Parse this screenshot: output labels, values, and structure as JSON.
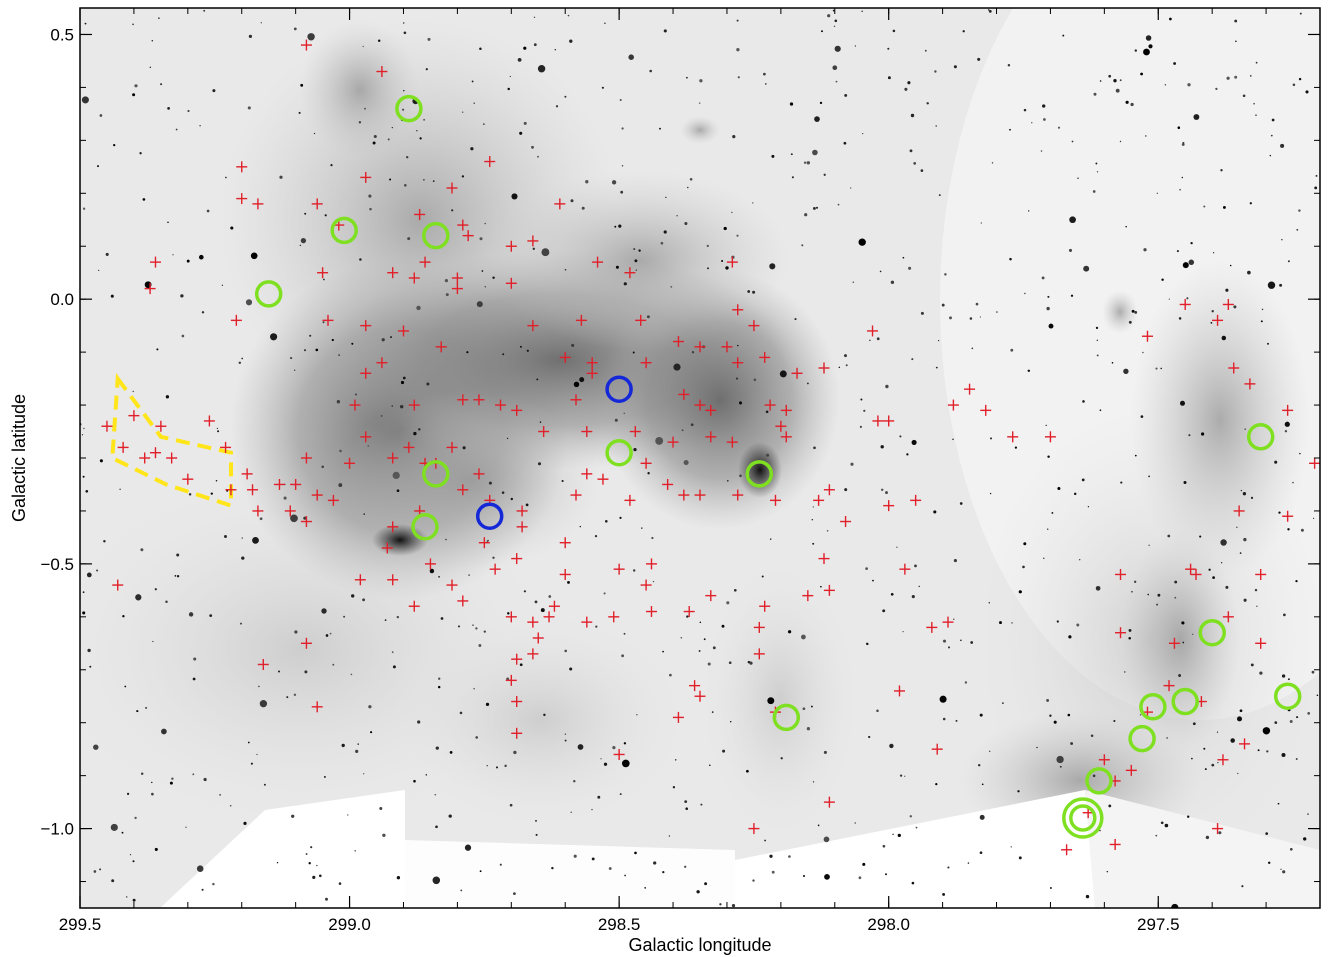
{
  "chart_data": {
    "type": "scatter",
    "xlabel": "Galactic longitude",
    "ylabel": "Galactic latitude",
    "xlim": [
      299.5,
      297.2
    ],
    "ylim": [
      -1.15,
      0.55
    ],
    "x_ticks": [
      {
        "value": 299.5,
        "label": "299.5"
      },
      {
        "value": 299.0,
        "label": "299.0"
      },
      {
        "value": 298.5,
        "label": "298.5"
      },
      {
        "value": 298.0,
        "label": "298.0"
      },
      {
        "value": 297.5,
        "label": "297.5"
      }
    ],
    "y_ticks": [
      {
        "value": 0.5,
        "label": "0.5"
      },
      {
        "value": 0.0,
        "label": "0.0"
      },
      {
        "value": -0.5,
        "label": "−0.5"
      },
      {
        "value": -1.0,
        "label": "−1.0"
      }
    ],
    "grid": false,
    "background": "grayscale infrared mosaic",
    "series": [
      {
        "marker": "plus",
        "color": "#e0202a",
        "points": [
          [
            299.08,
            0.48
          ],
          [
            298.94,
            0.43
          ],
          [
            299.2,
            0.25
          ],
          [
            299.2,
            0.19
          ],
          [
            298.97,
            0.23
          ],
          [
            298.81,
            0.21
          ],
          [
            298.74,
            0.26
          ],
          [
            299.17,
            0.18
          ],
          [
            299.06,
            0.18
          ],
          [
            299.02,
            0.14
          ],
          [
            298.87,
            0.16
          ],
          [
            298.79,
            0.14
          ],
          [
            298.78,
            0.12
          ],
          [
            298.88,
            0.04
          ],
          [
            298.8,
            0.04
          ],
          [
            298.86,
            0.07
          ],
          [
            298.7,
            0.1
          ],
          [
            298.61,
            0.18
          ],
          [
            298.66,
            0.11
          ],
          [
            298.54,
            0.07
          ],
          [
            298.48,
            0.05
          ],
          [
            298.29,
            0.07
          ],
          [
            299.36,
            0.07
          ],
          [
            299.37,
            0.02
          ],
          [
            299.05,
            0.05
          ],
          [
            298.92,
            0.05
          ],
          [
            298.8,
            0.02
          ],
          [
            298.7,
            0.03
          ],
          [
            298.66,
            -0.05
          ],
          [
            298.57,
            -0.04
          ],
          [
            298.46,
            -0.04
          ],
          [
            298.28,
            -0.02
          ],
          [
            298.25,
            -0.05
          ],
          [
            298.97,
            -0.05
          ],
          [
            299.04,
            -0.04
          ],
          [
            298.9,
            -0.06
          ],
          [
            299.21,
            -0.04
          ],
          [
            298.83,
            -0.09
          ],
          [
            298.6,
            -0.11
          ],
          [
            298.55,
            -0.12
          ],
          [
            298.55,
            -0.14
          ],
          [
            298.45,
            -0.12
          ],
          [
            298.39,
            -0.08
          ],
          [
            298.35,
            -0.09
          ],
          [
            298.3,
            -0.09
          ],
          [
            298.28,
            -0.12
          ],
          [
            298.23,
            -0.11
          ],
          [
            298.17,
            -0.14
          ],
          [
            298.12,
            -0.13
          ],
          [
            298.03,
            -0.06
          ],
          [
            298.94,
            -0.12
          ],
          [
            298.97,
            -0.14
          ],
          [
            298.79,
            -0.19
          ],
          [
            298.76,
            -0.19
          ],
          [
            298.72,
            -0.2
          ],
          [
            298.69,
            -0.21
          ],
          [
            298.58,
            -0.19
          ],
          [
            298.38,
            -0.18
          ],
          [
            298.35,
            -0.2
          ],
          [
            298.33,
            -0.21
          ],
          [
            298.22,
            -0.2
          ],
          [
            298.19,
            -0.21
          ],
          [
            298.02,
            -0.23
          ],
          [
            298.0,
            -0.23
          ],
          [
            297.85,
            -0.17
          ],
          [
            297.82,
            -0.21
          ],
          [
            297.7,
            -0.26
          ],
          [
            298.88,
            -0.2
          ],
          [
            298.99,
            -0.2
          ],
          [
            298.97,
            -0.26
          ],
          [
            298.89,
            -0.28
          ],
          [
            298.86,
            -0.31
          ],
          [
            298.81,
            -0.28
          ],
          [
            298.64,
            -0.25
          ],
          [
            298.56,
            -0.25
          ],
          [
            298.47,
            -0.25
          ],
          [
            298.4,
            -0.27
          ],
          [
            298.33,
            -0.26
          ],
          [
            298.29,
            -0.27
          ],
          [
            298.2,
            -0.24
          ],
          [
            298.19,
            -0.26
          ],
          [
            299.08,
            -0.3
          ],
          [
            299.1,
            -0.35
          ],
          [
            299.06,
            -0.37
          ],
          [
            299.0,
            -0.31
          ],
          [
            298.92,
            -0.3
          ],
          [
            298.84,
            -0.31
          ],
          [
            298.76,
            -0.33
          ],
          [
            298.79,
            -0.36
          ],
          [
            298.87,
            -0.4
          ],
          [
            298.74,
            -0.38
          ],
          [
            298.68,
            -0.4
          ],
          [
            298.58,
            -0.37
          ],
          [
            298.53,
            -0.34
          ],
          [
            298.45,
            -0.31
          ],
          [
            298.48,
            -0.38
          ],
          [
            298.41,
            -0.35
          ],
          [
            298.35,
            -0.37
          ],
          [
            298.28,
            -0.37
          ],
          [
            298.21,
            -0.38
          ],
          [
            298.13,
            -0.38
          ],
          [
            298.11,
            -0.36
          ],
          [
            298.08,
            -0.42
          ],
          [
            298.0,
            -0.39
          ],
          [
            297.95,
            -0.38
          ],
          [
            299.19,
            -0.33
          ],
          [
            299.18,
            -0.36
          ],
          [
            299.11,
            -0.4
          ],
          [
            299.08,
            -0.42
          ],
          [
            299.03,
            -0.38
          ],
          [
            298.92,
            -0.43
          ],
          [
            298.75,
            -0.46
          ],
          [
            298.68,
            -0.43
          ],
          [
            298.69,
            -0.49
          ],
          [
            298.6,
            -0.46
          ],
          [
            298.6,
            -0.52
          ],
          [
            298.62,
            -0.58
          ],
          [
            298.63,
            -0.6
          ],
          [
            298.56,
            -0.61
          ],
          [
            298.51,
            -0.6
          ],
          [
            298.5,
            -0.51
          ],
          [
            298.44,
            -0.5
          ],
          [
            298.45,
            -0.54
          ],
          [
            298.44,
            -0.59
          ],
          [
            298.37,
            -0.59
          ],
          [
            298.33,
            -0.56
          ],
          [
            298.23,
            -0.58
          ],
          [
            298.24,
            -0.62
          ],
          [
            298.24,
            -0.67
          ],
          [
            298.15,
            -0.56
          ],
          [
            298.11,
            -0.55
          ],
          [
            298.12,
            -0.49
          ],
          [
            297.97,
            -0.51
          ],
          [
            297.89,
            -0.61
          ],
          [
            297.92,
            -0.62
          ],
          [
            297.98,
            -0.74
          ],
          [
            298.85,
            -0.5
          ],
          [
            298.92,
            -0.53
          ],
          [
            298.98,
            -0.53
          ],
          [
            298.88,
            -0.58
          ],
          [
            298.79,
            -0.57
          ],
          [
            298.7,
            -0.6
          ],
          [
            298.65,
            -0.64
          ],
          [
            298.66,
            -0.67
          ],
          [
            298.69,
            -0.68
          ],
          [
            298.7,
            -0.72
          ],
          [
            298.69,
            -0.76
          ],
          [
            298.69,
            -0.82
          ],
          [
            298.36,
            -0.73
          ],
          [
            298.39,
            -0.79
          ],
          [
            298.5,
            -0.86
          ],
          [
            298.21,
            -0.78
          ],
          [
            297.91,
            -0.85
          ],
          [
            298.11,
            -0.95
          ],
          [
            298.25,
            -1.0
          ],
          [
            297.88,
            -0.2
          ],
          [
            297.77,
            -0.26
          ],
          [
            297.57,
            -0.52
          ],
          [
            297.57,
            -0.63
          ],
          [
            297.52,
            -0.07
          ],
          [
            297.45,
            -0.01
          ],
          [
            297.37,
            -0.01
          ],
          [
            297.39,
            -0.04
          ],
          [
            297.36,
            -0.13
          ],
          [
            297.33,
            -0.16
          ],
          [
            297.26,
            -0.21
          ],
          [
            297.21,
            -0.31
          ],
          [
            297.26,
            -0.41
          ],
          [
            297.35,
            -0.4
          ],
          [
            297.44,
            -0.51
          ],
          [
            297.43,
            -0.52
          ],
          [
            297.31,
            -0.52
          ],
          [
            297.37,
            -0.6
          ],
          [
            297.31,
            -0.65
          ],
          [
            297.47,
            -0.65
          ],
          [
            297.48,
            -0.73
          ],
          [
            297.42,
            -0.76
          ],
          [
            297.52,
            -0.78
          ],
          [
            297.34,
            -0.84
          ],
          [
            297.38,
            -0.87
          ],
          [
            297.55,
            -0.89
          ],
          [
            297.58,
            -0.91
          ],
          [
            297.6,
            -0.87
          ],
          [
            297.63,
            -0.97
          ],
          [
            297.58,
            -1.03
          ],
          [
            297.67,
            -1.04
          ],
          [
            297.39,
            -1.0
          ],
          [
            299.08,
            -0.65
          ],
          [
            299.16,
            -0.69
          ],
          [
            299.06,
            -0.77
          ],
          [
            299.43,
            -0.54
          ],
          [
            299.26,
            -0.23
          ],
          [
            299.3,
            -0.34
          ],
          [
            299.4,
            -0.22
          ],
          [
            299.35,
            -0.24
          ],
          [
            299.45,
            -0.24
          ],
          [
            299.42,
            -0.28
          ],
          [
            299.38,
            -0.3
          ],
          [
            299.36,
            -0.29
          ],
          [
            299.33,
            -0.3
          ],
          [
            299.23,
            -0.28
          ],
          [
            299.22,
            -0.36
          ],
          [
            299.17,
            -0.4
          ],
          [
            299.13,
            -0.35
          ],
          [
            298.93,
            -0.47
          ],
          [
            298.81,
            -0.54
          ],
          [
            298.73,
            -0.51
          ],
          [
            298.66,
            -0.61
          ],
          [
            298.35,
            -0.75
          ],
          [
            298.38,
            -0.37
          ],
          [
            298.56,
            -0.33
          ]
        ]
      },
      {
        "marker": "circle",
        "color": "#7ee020",
        "points": [
          [
            298.89,
            0.36
          ],
          [
            299.01,
            0.13
          ],
          [
            298.84,
            0.12
          ],
          [
            299.15,
            0.01
          ],
          [
            298.84,
            -0.33
          ],
          [
            298.86,
            -0.43
          ],
          [
            298.5,
            -0.29
          ],
          [
            298.24,
            -0.33
          ],
          [
            298.19,
            -0.79
          ],
          [
            297.31,
            -0.26
          ],
          [
            297.4,
            -0.63
          ],
          [
            297.51,
            -0.77
          ],
          [
            297.45,
            -0.76
          ],
          [
            297.53,
            -0.83
          ],
          [
            297.26,
            -0.75
          ],
          [
            297.61,
            -0.91
          ],
          [
            297.64,
            -0.98
          ]
        ]
      },
      {
        "marker": "circle",
        "color": "#1528d8",
        "points": [
          [
            298.5,
            -0.17
          ],
          [
            298.74,
            -0.41
          ]
        ]
      }
    ],
    "annotations": [
      {
        "type": "dashed-polygon",
        "color": "#ffe51a",
        "vertices": [
          [
            299.43,
            -0.15
          ],
          [
            299.35,
            -0.26
          ],
          [
            299.22,
            -0.29
          ],
          [
            299.22,
            -0.39
          ],
          [
            299.34,
            -0.35
          ],
          [
            299.44,
            -0.3
          ]
        ]
      }
    ]
  }
}
